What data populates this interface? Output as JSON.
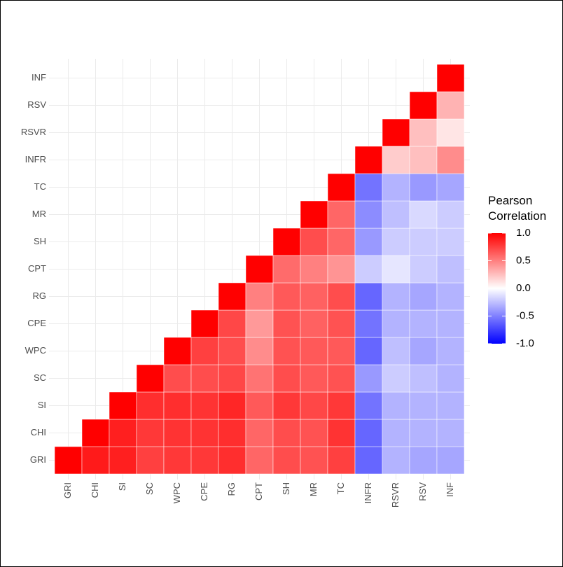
{
  "chart_data": {
    "type": "heatmap",
    "x_categories": [
      "GRI",
      "CHI",
      "SI",
      "SC",
      "WPC",
      "CPE",
      "RG",
      "CPT",
      "SH",
      "MR",
      "TC",
      "INFR",
      "RSVR",
      "RSV",
      "INF"
    ],
    "y_categories": [
      "GRI",
      "CHI",
      "SI",
      "SC",
      "WPC",
      "CPE",
      "RG",
      "CPT",
      "SH",
      "MR",
      "TC",
      "INFR",
      "RSVR",
      "RSV",
      "INF"
    ],
    "values": [
      [
        1,
        0.9,
        0.88,
        0.75,
        0.78,
        0.78,
        0.82,
        0.6,
        0.7,
        0.68,
        0.75,
        -0.6,
        -0.3,
        -0.35,
        -0.35
      ],
      [
        null,
        1,
        0.88,
        0.78,
        0.8,
        0.8,
        0.82,
        0.6,
        0.7,
        0.68,
        0.8,
        -0.6,
        -0.3,
        -0.3,
        -0.3
      ],
      [
        null,
        null,
        1,
        0.82,
        0.82,
        0.8,
        0.85,
        0.65,
        0.78,
        0.72,
        0.78,
        -0.55,
        -0.3,
        -0.3,
        -0.3
      ],
      [
        null,
        null,
        null,
        1,
        0.7,
        0.7,
        0.72,
        0.55,
        0.7,
        0.65,
        0.68,
        -0.4,
        -0.2,
        -0.25,
        -0.3
      ],
      [
        null,
        null,
        null,
        null,
        1,
        0.75,
        0.7,
        0.45,
        0.68,
        0.65,
        0.65,
        -0.6,
        -0.25,
        -0.35,
        -0.3
      ],
      [
        null,
        null,
        null,
        null,
        null,
        1,
        0.72,
        0.4,
        0.68,
        0.62,
        0.68,
        -0.55,
        -0.3,
        -0.3,
        -0.3
      ],
      [
        null,
        null,
        null,
        null,
        null,
        null,
        1,
        0.5,
        0.65,
        0.62,
        0.7,
        -0.6,
        -0.3,
        -0.35,
        -0.3
      ],
      [
        null,
        null,
        null,
        null,
        null,
        null,
        null,
        1,
        0.58,
        0.5,
        0.42,
        -0.2,
        -0.1,
        -0.2,
        -0.25
      ],
      [
        null,
        null,
        null,
        null,
        null,
        null,
        null,
        null,
        1,
        0.7,
        0.6,
        -0.4,
        -0.2,
        -0.2,
        -0.2
      ],
      [
        null,
        null,
        null,
        null,
        null,
        null,
        null,
        null,
        null,
        1,
        0.6,
        -0.45,
        -0.25,
        -0.15,
        -0.2
      ],
      [
        null,
        null,
        null,
        null,
        null,
        null,
        null,
        null,
        null,
        null,
        1,
        -0.55,
        -0.3,
        -0.4,
        -0.35
      ],
      [
        null,
        null,
        null,
        null,
        null,
        null,
        null,
        null,
        null,
        null,
        null,
        1,
        0.2,
        0.25,
        0.45
      ],
      [
        null,
        null,
        null,
        null,
        null,
        null,
        null,
        null,
        null,
        null,
        null,
        null,
        1,
        0.25,
        0.1
      ],
      [
        null,
        null,
        null,
        null,
        null,
        null,
        null,
        null,
        null,
        null,
        null,
        null,
        null,
        1,
        0.3
      ],
      [
        null,
        null,
        null,
        null,
        null,
        null,
        null,
        null,
        null,
        null,
        null,
        null,
        null,
        null,
        1
      ]
    ],
    "legend_title": "Pearson Correlation",
    "clim": [
      -1,
      1
    ],
    "cticks": [
      {
        "value": 1,
        "label": "1.0"
      },
      0.5,
      {
        "value": 0,
        "label": "0.0"
      },
      -0.5,
      {
        "value": -1,
        "label": "-1.0"
      }
    ],
    "colors": {
      "low": "#0000FF",
      "mid": "#FFFFFF",
      "high": "#FF0000"
    },
    "grid": true
  }
}
